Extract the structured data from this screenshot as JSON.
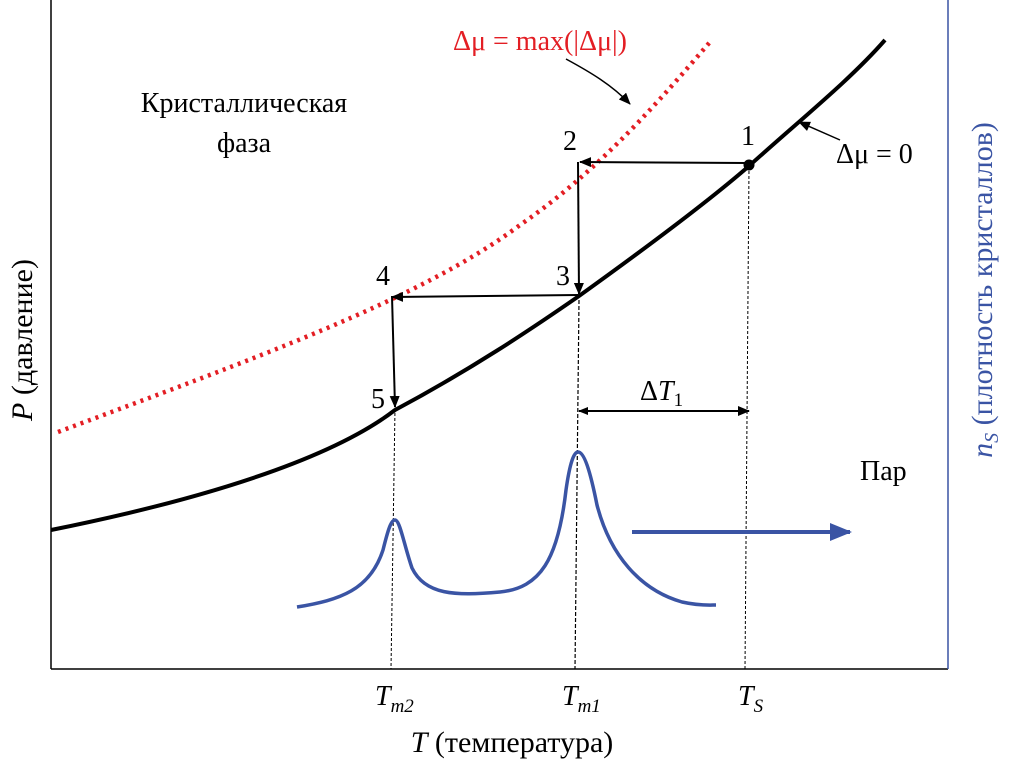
{
  "labels": {
    "crystal_phase_line1": "Кристаллическая",
    "crystal_phase_line2": "фаза",
    "vapor": "Пар",
    "max_prefix": "Δμ = max(|Δμ|)",
    "zero_label": "Δμ = 0",
    "delta_T_prefix": "Δ",
    "delta_T_var": "T",
    "delta_T_sub": "1",
    "y_axis_var": "P",
    "y_axis_text": " (давление)",
    "y2_axis_var": "n",
    "y2_axis_sub": "S",
    "y2_axis_text": " (плотность кристаллов)",
    "x_axis_var": "T",
    "x_axis_text": " (температура)",
    "tick_tm2_var": "T",
    "tick_tm2_sub": "m2",
    "tick_tm1_var": "T",
    "tick_tm1_sub": "m1",
    "tick_ts_var": "T",
    "tick_ts_sub": "S"
  },
  "points": [
    {
      "label": "1"
    },
    {
      "label": "2"
    },
    {
      "label": "3"
    },
    {
      "label": "4"
    },
    {
      "label": "5"
    }
  ],
  "colors": {
    "equilibrium_curve": "#000000",
    "max_curve": "#e31e24",
    "density_curve": "#3a54a4",
    "right_axis": "#3a54a4",
    "text": "#000000"
  }
}
